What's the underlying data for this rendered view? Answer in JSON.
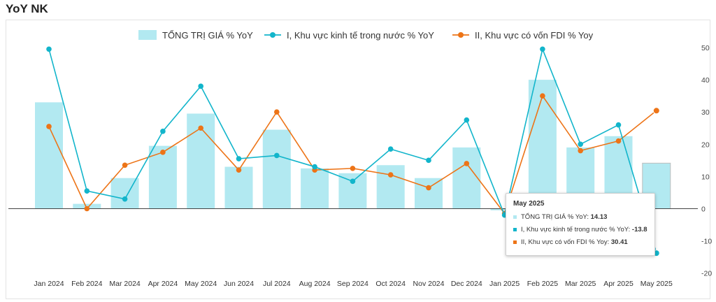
{
  "page": {
    "title": "YoY NK"
  },
  "colors": {
    "bar": "#b2e9f1",
    "line1": "#12b5cb",
    "line2": "#ed7417",
    "grid": "#e6e6e6",
    "axis": "#444444"
  },
  "chart_data": {
    "type": "bar+line",
    "categories": [
      "Jan 2024",
      "Feb 2024",
      "Mar 2024",
      "Apr 2024",
      "May 2024",
      "Jun 2024",
      "Jul 2024",
      "Aug 2024",
      "Sep 2024",
      "Oct 2024",
      "Nov 2024",
      "Dec 2024",
      "Jan 2025",
      "Feb 2025",
      "Mar 2025",
      "Apr 2025",
      "May 2025"
    ],
    "series": [
      {
        "name": "TỔNG TRỊ GIÁ % YoY",
        "kind": "bar",
        "values": [
          33,
          1.5,
          9.5,
          19.5,
          29.5,
          13,
          24.5,
          12.5,
          11,
          13.5,
          9.5,
          19,
          -0.5,
          40,
          19,
          22.5,
          14.13
        ]
      },
      {
        "name": "I, Khu vực kinh tế trong nước % YoY",
        "kind": "line",
        "values": [
          49.5,
          5.5,
          3,
          24,
          38,
          15.5,
          16.5,
          13,
          8.5,
          18.5,
          15,
          27.5,
          -2,
          49.5,
          20,
          26,
          -13.8
        ]
      },
      {
        "name": "II, Khu vực có vốn FDI % Yoy",
        "kind": "line",
        "values": [
          25.5,
          0,
          13.5,
          17.5,
          25,
          12,
          30,
          12,
          12.5,
          10.5,
          6.5,
          14,
          -1.5,
          35,
          18,
          21,
          30.41
        ]
      }
    ],
    "y_axis": {
      "position": "right",
      "ticks": [
        50,
        40,
        30,
        20,
        10,
        0,
        -10,
        -20
      ],
      "ylim": [
        -20,
        50
      ]
    },
    "legend_position": "top",
    "tooltip": {
      "title": "May 2025",
      "rows": [
        {
          "label": "TỔNG TRỊ GIÁ % YoY: ",
          "value": "14.13"
        },
        {
          "label": "I, Khu vực kinh tế trong nước % YoY: ",
          "value": "-13.8"
        },
        {
          "label": "II, Khu vực có vốn FDI % Yoy: ",
          "value": "30.41"
        }
      ]
    }
  }
}
